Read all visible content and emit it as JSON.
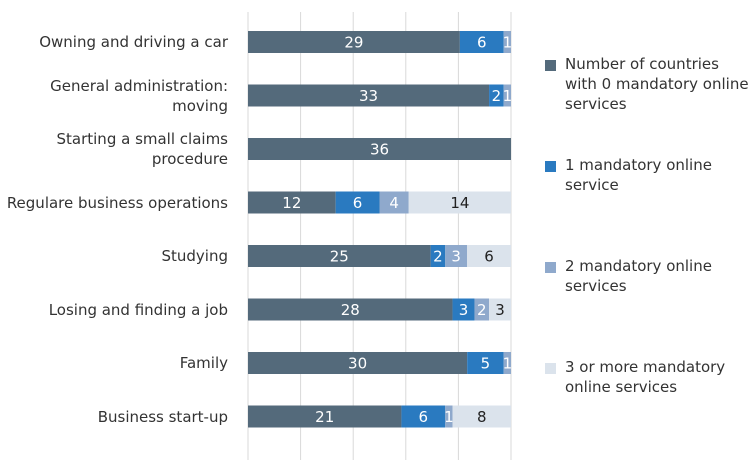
{
  "chart_data": {
    "type": "stacked-bar-horizontal",
    "categories": [
      "Owning and driving a car",
      "General administration: moving",
      "Starting a small claims procedure",
      "Regulare business operations",
      "Studying",
      "Losing and finding a job",
      "Family",
      "Business start-up"
    ],
    "series": [
      {
        "name": "Number of countries with 0 mandatory online services",
        "color": "#546a7b",
        "values": [
          29,
          33,
          36,
          12,
          25,
          28,
          30,
          21
        ]
      },
      {
        "name": "1 mandatory online service",
        "color": "#2a7ac0",
        "values": [
          6,
          2,
          0,
          6,
          2,
          3,
          5,
          6
        ]
      },
      {
        "name": "2 mandatory online services",
        "color": "#8fa9cc",
        "values": [
          1,
          1,
          0,
          4,
          3,
          2,
          1,
          1
        ]
      },
      {
        "name": "3 or more mandatory online services",
        "color": "#dbe3ec",
        "values": [
          0,
          0,
          0,
          14,
          6,
          3,
          0,
          8
        ]
      }
    ],
    "xlim": [
      0,
      36
    ],
    "xticks": [
      0,
      7.2,
      14.4,
      21.6,
      28.8,
      36
    ],
    "grid": true
  }
}
